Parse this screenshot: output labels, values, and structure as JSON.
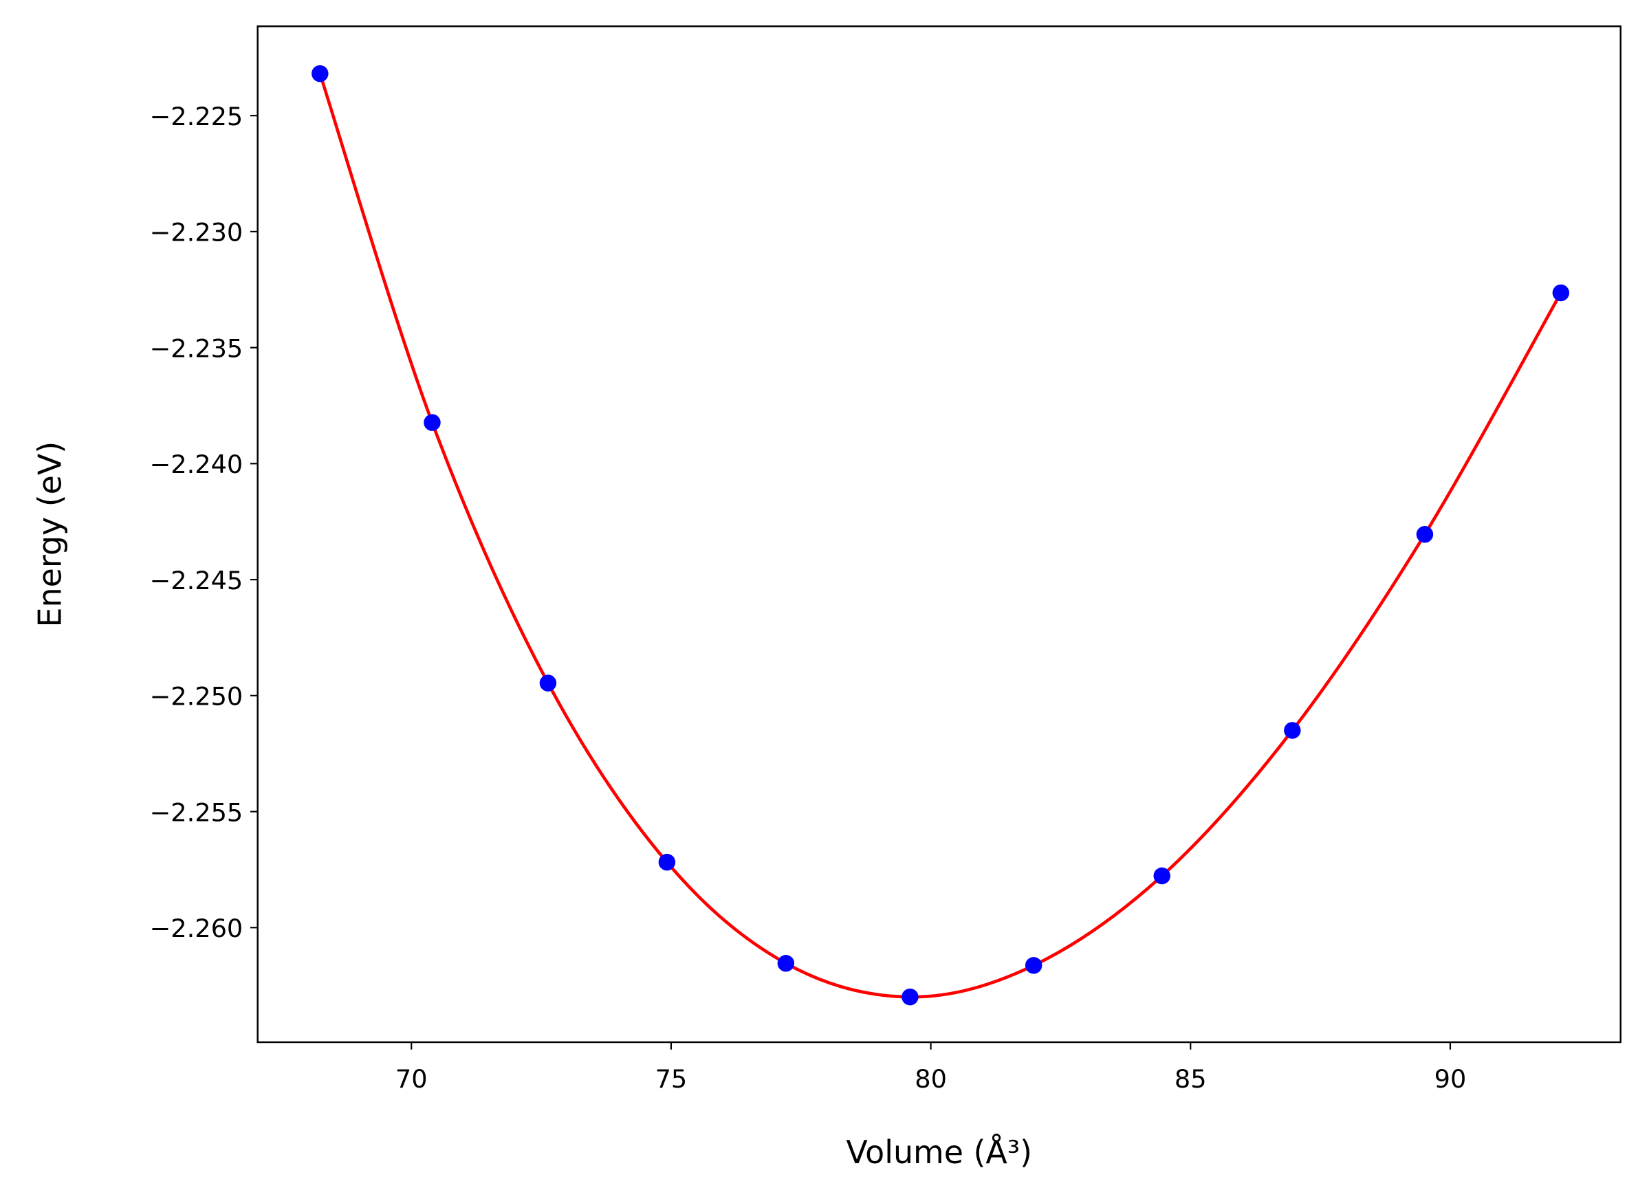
{
  "chart_data": {
    "type": "line",
    "title": "",
    "xlabel": "Volume (Å³)",
    "ylabel": "Energy (eV)",
    "xlim": [
      67.04,
      93.28
    ],
    "ylim": [
      -2.26494,
      -2.22115
    ],
    "x_ticks": [
      70,
      75,
      80,
      85,
      90
    ],
    "x_tick_labels": [
      "70",
      "75",
      "80",
      "85",
      "90"
    ],
    "y_ticks": [
      -2.225,
      -2.23,
      -2.235,
      -2.24,
      -2.245,
      -2.25,
      -2.255,
      -2.26
    ],
    "y_tick_labels": [
      "−2.225",
      "−2.230",
      "−2.235",
      "−2.240",
      "−2.245",
      "−2.250",
      "−2.255",
      "−2.260"
    ],
    "grid": false,
    "legend": "none",
    "series": [
      {
        "kind": "points",
        "color": "#0000ff",
        "x": [
          68.24,
          70.4,
          72.63,
          74.92,
          77.21,
          79.6,
          81.98,
          84.45,
          86.96,
          89.51,
          92.13
        ],
        "y": [
          -2.22319,
          -2.23823,
          -2.24946,
          -2.25718,
          -2.26154,
          -2.26299,
          -2.26163,
          -2.25777,
          -2.2515,
          -2.24305,
          -2.23264
        ]
      },
      {
        "kind": "fit-curve",
        "color": "#ff0000"
      }
    ]
  }
}
